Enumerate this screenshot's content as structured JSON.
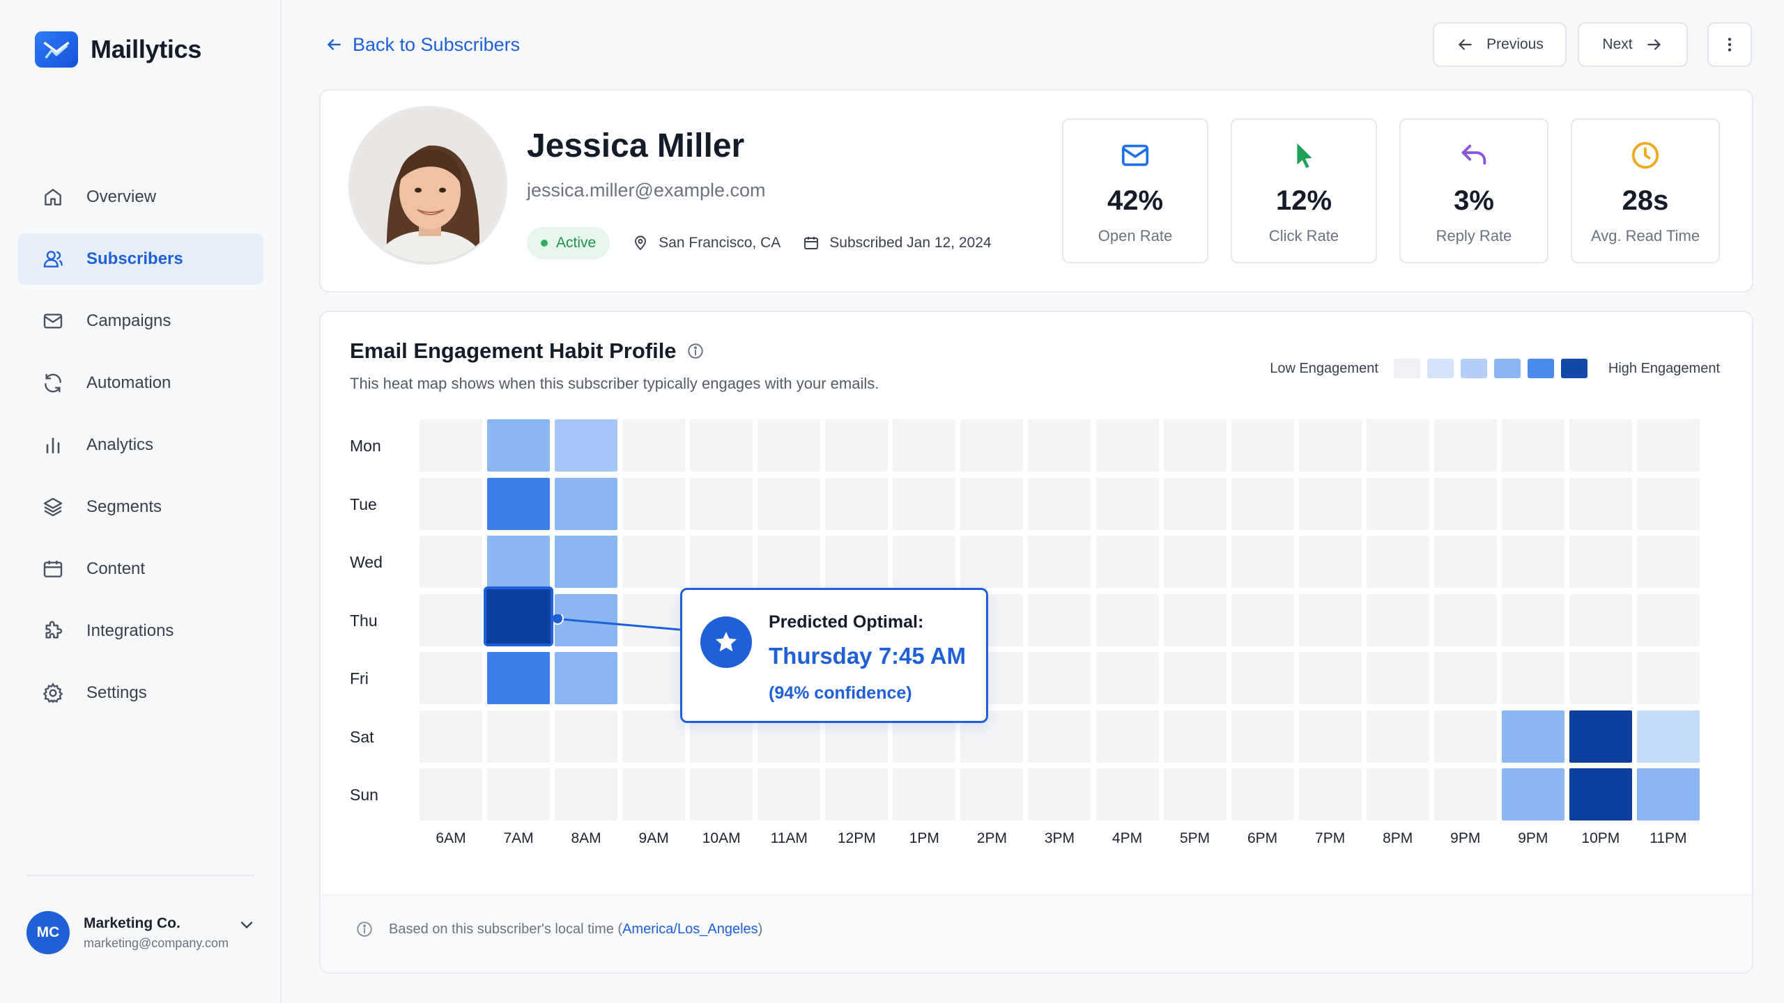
{
  "app": {
    "name": "Maillytics"
  },
  "sidebar": {
    "items": [
      {
        "label": "Overview",
        "icon": "home-icon",
        "active": false
      },
      {
        "label": "Subscribers",
        "icon": "users-icon",
        "active": true
      },
      {
        "label": "Campaigns",
        "icon": "mail-icon",
        "active": false
      },
      {
        "label": "Automation",
        "icon": "refresh-icon",
        "active": false
      },
      {
        "label": "Analytics",
        "icon": "bar-chart-icon",
        "active": false
      },
      {
        "label": "Segments",
        "icon": "layers-icon",
        "active": false
      },
      {
        "label": "Content",
        "icon": "calendar-icon",
        "active": false
      },
      {
        "label": "Integrations",
        "icon": "puzzle-icon",
        "active": false
      },
      {
        "label": "Settings",
        "icon": "gear-icon",
        "active": false
      }
    ],
    "account": {
      "initials": "MC",
      "org": "Marketing Co.",
      "email": "marketing@company.com"
    }
  },
  "topbar": {
    "back_label": "Back to Subscribers",
    "prev_label": "Previous",
    "next_label": "Next"
  },
  "profile": {
    "name": "Jessica Miller",
    "email": "jessica.miller@example.com",
    "status": "Active",
    "location": "San Francisco, CA",
    "subscribed": "Subscribed Jan 12, 2024",
    "stats": [
      {
        "value": "42%",
        "label": "Open Rate",
        "icon": "mail-icon",
        "color": "#1f6fe8"
      },
      {
        "value": "12%",
        "label": "Click Rate",
        "icon": "cursor-icon",
        "color": "#21a05a"
      },
      {
        "value": "3%",
        "label": "Reply Rate",
        "icon": "reply-icon",
        "color": "#8a55d8"
      },
      {
        "value": "28s",
        "label": "Avg. Read Time",
        "icon": "clock-icon",
        "color": "#f0a91c"
      }
    ]
  },
  "heatmap": {
    "title": "Email Engagement Habit Profile",
    "subtitle": "This heat map shows when this subscriber typically engages with your emails.",
    "legend_low": "Low Engagement",
    "legend_high": "High Engagement",
    "legend_colors": [
      "#eef0f3",
      "#d3e3fb",
      "#b3cff8",
      "#8ab6f4",
      "#4a8aeb",
      "#124aa8"
    ],
    "footer_prefix": "Based on this subscriber's local time (",
    "footer_tz": "America/Los_Angeles",
    "footer_suffix": ")"
  },
  "chart_data": {
    "type": "heatmap",
    "title": "Email Engagement Habit Profile",
    "rows": [
      "Mon",
      "Tue",
      "Wed",
      "Thu",
      "Fri",
      "Sat",
      "Sun"
    ],
    "columns": [
      "6AM",
      "7AM",
      "8AM",
      "9AM",
      "10AM",
      "11AM",
      "12PM",
      "1PM",
      "2PM",
      "3PM",
      "4PM",
      "5PM",
      "6PM",
      "7PM",
      "8PM",
      "9PM",
      "9PM",
      "10PM",
      "11PM"
    ],
    "levels": [
      [
        0,
        3,
        2,
        0,
        0,
        0,
        0,
        0,
        0,
        0,
        0,
        0,
        0,
        0,
        0,
        0,
        0,
        0,
        0
      ],
      [
        0,
        4,
        3,
        0,
        0,
        0,
        0,
        0,
        0,
        0,
        0,
        0,
        0,
        0,
        0,
        0,
        0,
        0,
        0
      ],
      [
        0,
        3,
        3,
        0,
        0,
        0,
        0,
        0,
        0,
        0,
        0,
        0,
        0,
        0,
        0,
        0,
        0,
        0,
        0
      ],
      [
        0,
        5,
        3,
        0,
        0,
        0,
        0,
        0,
        0,
        0,
        0,
        0,
        0,
        0,
        0,
        0,
        0,
        0,
        0
      ],
      [
        0,
        4,
        3,
        0,
        0,
        0,
        0,
        0,
        0,
        0,
        0,
        0,
        0,
        0,
        0,
        0,
        0,
        0,
        0
      ],
      [
        0,
        0,
        0,
        0,
        0,
        0,
        0,
        0,
        0,
        0,
        0,
        0,
        0,
        0,
        0,
        0,
        3,
        5,
        2
      ],
      [
        0,
        0,
        0,
        0,
        0,
        0,
        0,
        0,
        0,
        0,
        0,
        0,
        0,
        0,
        0,
        0,
        3,
        5,
        3
      ]
    ],
    "level_range": [
      0,
      5
    ],
    "legend": {
      "low": "Low Engagement",
      "high": "High Engagement",
      "placement": "top-right"
    },
    "highlight": {
      "row": "Thu",
      "column": "7AM",
      "title": "Predicted Optimal:",
      "value": "Thursday 7:45 AM",
      "confidence": "(94% confidence)"
    }
  }
}
